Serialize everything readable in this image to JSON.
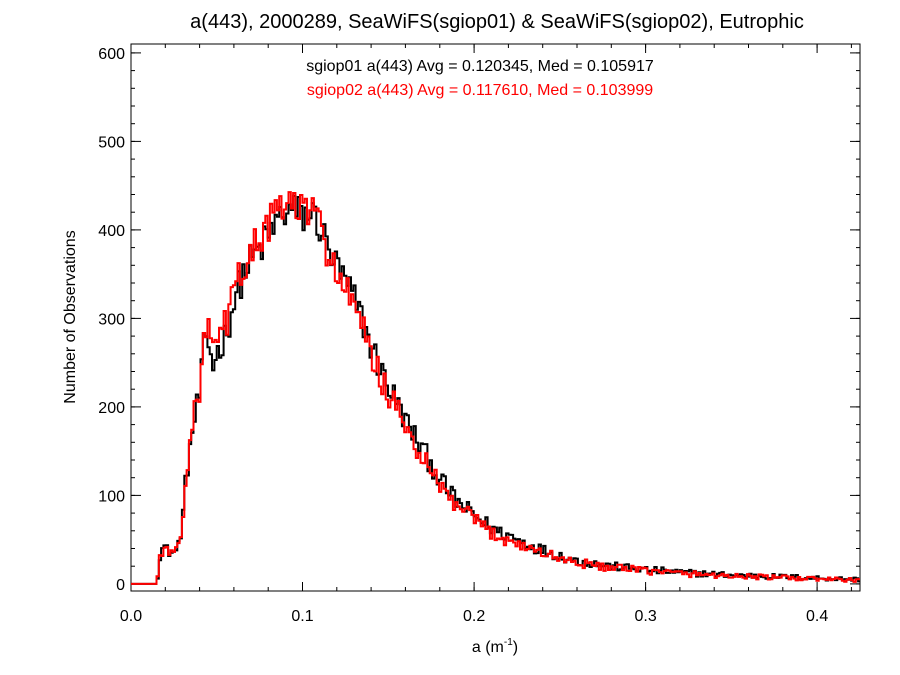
{
  "chart_data": {
    "type": "histogram-step",
    "title": "a(443), 2000289, SeaWiFS(sgiop01) & SeaWiFS(sgiop02), Eutrophic",
    "xlabel": "a (m",
    "xlabel_sup": "-1",
    "xlabel_close": ")",
    "ylabel": "Number of Observations",
    "xlim": [
      0.0,
      0.425
    ],
    "ylim": [
      -8,
      610
    ],
    "x_ticks": [
      0.0,
      0.1,
      0.2,
      0.3,
      0.4
    ],
    "x_tick_labels": [
      "0.0",
      "0.1",
      "0.2",
      "0.3",
      "0.4"
    ],
    "y_ticks": [
      0,
      100,
      200,
      300,
      400,
      500,
      600
    ],
    "y_tick_labels": [
      "0",
      "100",
      "200",
      "300",
      "400",
      "500",
      "600"
    ],
    "grid": false,
    "bin_width": 0.00135,
    "x_start": 0.0,
    "series": [
      {
        "name": "sgiop01",
        "color": "#000000",
        "annotation": "sgiop01 a(443) Avg = 0.120345, Med = 0.105917",
        "keypoints": [
          [
            0.0,
            0
          ],
          [
            0.015,
            0
          ],
          [
            0.017,
            35
          ],
          [
            0.019,
            43
          ],
          [
            0.021,
            38
          ],
          [
            0.024,
            35
          ],
          [
            0.027,
            37
          ],
          [
            0.03,
            70
          ],
          [
            0.032,
            118
          ],
          [
            0.036,
            175
          ],
          [
            0.04,
            215
          ],
          [
            0.043,
            275
          ],
          [
            0.045,
            272
          ],
          [
            0.048,
            248
          ],
          [
            0.05,
            260
          ],
          [
            0.055,
            280
          ],
          [
            0.06,
            318
          ],
          [
            0.065,
            348
          ],
          [
            0.07,
            365
          ],
          [
            0.075,
            378
          ],
          [
            0.08,
            392
          ],
          [
            0.085,
            410
          ],
          [
            0.09,
            420
          ],
          [
            0.095,
            422
          ],
          [
            0.1,
            415
          ],
          [
            0.105,
            420
          ],
          [
            0.11,
            405
          ],
          [
            0.115,
            378
          ],
          [
            0.12,
            358
          ],
          [
            0.125,
            340
          ],
          [
            0.13,
            322
          ],
          [
            0.135,
            298
          ],
          [
            0.14,
            268
          ],
          [
            0.145,
            245
          ],
          [
            0.15,
            225
          ],
          [
            0.155,
            205
          ],
          [
            0.16,
            185
          ],
          [
            0.165,
            168
          ],
          [
            0.17,
            152
          ],
          [
            0.175,
            135
          ],
          [
            0.18,
            118
          ],
          [
            0.185,
            105
          ],
          [
            0.19,
            93
          ],
          [
            0.195,
            85
          ],
          [
            0.2,
            78
          ],
          [
            0.205,
            70
          ],
          [
            0.21,
            64
          ],
          [
            0.215,
            58
          ],
          [
            0.22,
            55
          ],
          [
            0.23,
            46
          ],
          [
            0.24,
            38
          ],
          [
            0.25,
            32
          ],
          [
            0.26,
            26
          ],
          [
            0.28,
            20
          ],
          [
            0.3,
            16
          ],
          [
            0.32,
            13
          ],
          [
            0.35,
            10
          ],
          [
            0.38,
            8
          ],
          [
            0.41,
            6
          ],
          [
            0.425,
            5
          ]
        ]
      },
      {
        "name": "sgiop02",
        "color": "#ff0000",
        "annotation": "sgiop02 a(443) Avg = 0.117610, Med = 0.103999",
        "keypoints": [
          [
            0.0,
            0
          ],
          [
            0.015,
            0
          ],
          [
            0.017,
            33
          ],
          [
            0.019,
            41
          ],
          [
            0.021,
            36
          ],
          [
            0.024,
            35
          ],
          [
            0.027,
            39
          ],
          [
            0.03,
            72
          ],
          [
            0.032,
            122
          ],
          [
            0.036,
            180
          ],
          [
            0.04,
            222
          ],
          [
            0.043,
            285
          ],
          [
            0.045,
            285
          ],
          [
            0.048,
            262
          ],
          [
            0.05,
            270
          ],
          [
            0.055,
            292
          ],
          [
            0.06,
            328
          ],
          [
            0.065,
            358
          ],
          [
            0.07,
            375
          ],
          [
            0.075,
            388
          ],
          [
            0.08,
            405
          ],
          [
            0.085,
            418
          ],
          [
            0.09,
            428
          ],
          [
            0.095,
            428
          ],
          [
            0.1,
            420
          ],
          [
            0.105,
            422
          ],
          [
            0.11,
            405
          ],
          [
            0.115,
            375
          ],
          [
            0.12,
            352
          ],
          [
            0.125,
            332
          ],
          [
            0.13,
            312
          ],
          [
            0.135,
            288
          ],
          [
            0.14,
            258
          ],
          [
            0.145,
            236
          ],
          [
            0.15,
            215
          ],
          [
            0.155,
            196
          ],
          [
            0.16,
            176
          ],
          [
            0.165,
            158
          ],
          [
            0.17,
            142
          ],
          [
            0.175,
            126
          ],
          [
            0.18,
            110
          ],
          [
            0.185,
            98
          ],
          [
            0.19,
            88
          ],
          [
            0.195,
            80
          ],
          [
            0.2,
            72
          ],
          [
            0.205,
            65
          ],
          [
            0.21,
            58
          ],
          [
            0.215,
            53
          ],
          [
            0.22,
            50
          ],
          [
            0.23,
            42
          ],
          [
            0.24,
            35
          ],
          [
            0.25,
            29
          ],
          [
            0.26,
            24
          ],
          [
            0.28,
            18
          ],
          [
            0.3,
            15
          ],
          [
            0.32,
            12
          ],
          [
            0.35,
            9
          ],
          [
            0.38,
            7
          ],
          [
            0.41,
            5
          ],
          [
            0.425,
            4
          ]
        ]
      }
    ]
  }
}
